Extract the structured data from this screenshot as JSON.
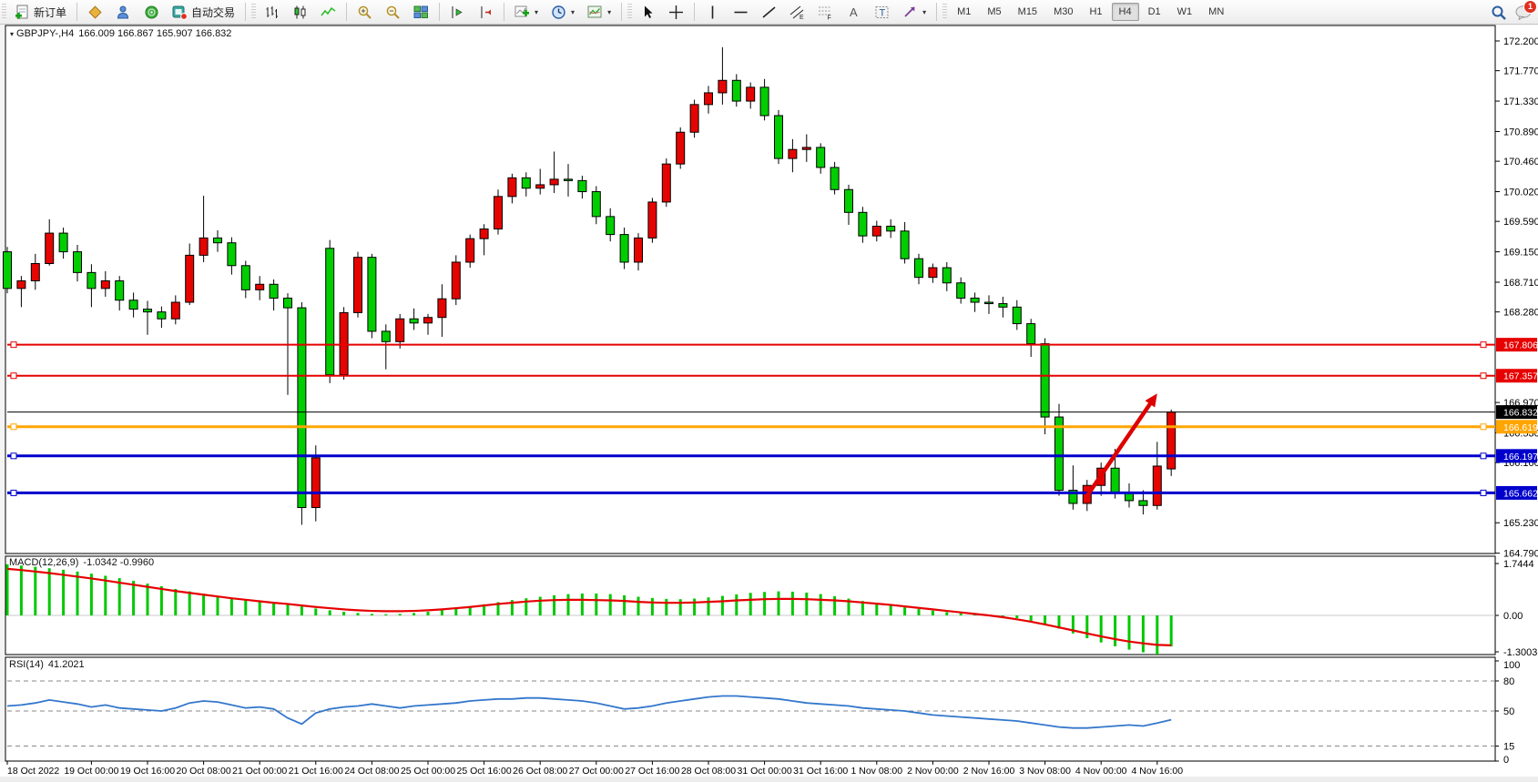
{
  "toolbar": {
    "new_order_label": "新订单",
    "autotrade_label": "自动交易",
    "timeframes": [
      "M1",
      "M5",
      "M15",
      "M30",
      "H1",
      "H4",
      "D1",
      "W1",
      "MN"
    ],
    "active_timeframe": "H4",
    "notification_count": "1"
  },
  "chart": {
    "symbol_period": "GBPJPY-,H4",
    "ohlc_text": "166.009 166.867 165.907 166.832",
    "collapse_glyph": "▾"
  },
  "macd": {
    "name": "MACD(12,26,9)",
    "values": "-1.0342 -0.9960"
  },
  "rsi": {
    "name": "RSI(14)",
    "value": "41.2021"
  },
  "chart_data": {
    "type": "candlestick",
    "symbol": "GBPJPY-",
    "timeframe": "H4",
    "current_ohlc": {
      "open": 166.009,
      "high": 166.867,
      "low": 165.907,
      "close": 166.832
    },
    "colors": {
      "bull": "#e60400",
      "bear": "#00ce00",
      "wick": "#000000",
      "macd_histogram": "#00c800",
      "macd_signal": "#e60000",
      "rsi_line": "#3377cc",
      "level_red": "#e60000",
      "level_orange": "#ffa500",
      "level_blue": "#0000cc",
      "price_line_black": "#000000"
    },
    "price_axis_ticks": [
      "172.200",
      "171.770",
      "171.330",
      "170.890",
      "170.460",
      "170.020",
      "169.590",
      "169.150",
      "168.710",
      "168.280",
      "166.970",
      "166.530",
      "166.100",
      "165.230",
      "164.790"
    ],
    "time_axis_labels": [
      "18 Oct 2022",
      "19 Oct 00:00",
      "19 Oct 16:00",
      "20 Oct 08:00",
      "21 Oct 00:00",
      "21 Oct 16:00",
      "24 Oct 08:00",
      "25 Oct 00:00",
      "25 Oct 16:00",
      "26 Oct 08:00",
      "27 Oct 00:00",
      "27 Oct 16:00",
      "28 Oct 08:00",
      "31 Oct 00:00",
      "31 Oct 16:00",
      "1 Nov 08:00",
      "2 Nov 00:00",
      "2 Nov 16:00",
      "3 Nov 08:00",
      "4 Nov 00:00",
      "4 Nov 16:00"
    ],
    "horizontal_lines": [
      {
        "price": 167.806,
        "label": "167.806",
        "color": "#e60000",
        "width": 2,
        "handles": true
      },
      {
        "price": 167.357,
        "label": "167.357",
        "color": "#e60000",
        "width": 2,
        "handles": true
      },
      {
        "price": 166.832,
        "label": "166.832",
        "color": "#000000",
        "width": 1,
        "handles": false
      },
      {
        "price": 166.619,
        "label": "166.619",
        "color": "#ffa500",
        "width": 3,
        "handles": true
      },
      {
        "price": 166.197,
        "label": "166.197",
        "color": "#0000cc",
        "width": 3,
        "handles": true
      },
      {
        "price": 165.662,
        "label": "165.662",
        "color": "#0000cc",
        "width": 3,
        "handles": true
      }
    ],
    "candles": [
      [
        169.15,
        169.22,
        168.55,
        168.62
      ],
      [
        168.62,
        168.8,
        168.35,
        168.73
      ],
      [
        168.73,
        169.12,
        168.6,
        168.98
      ],
      [
        168.98,
        169.62,
        168.95,
        169.42
      ],
      [
        169.42,
        169.5,
        169.05,
        169.15
      ],
      [
        169.15,
        169.25,
        168.72,
        168.85
      ],
      [
        168.85,
        168.97,
        168.35,
        168.62
      ],
      [
        168.62,
        168.87,
        168.5,
        168.73
      ],
      [
        168.73,
        168.8,
        168.3,
        168.45
      ],
      [
        168.45,
        168.56,
        168.2,
        168.32
      ],
      [
        168.32,
        168.44,
        167.95,
        168.28
      ],
      [
        168.28,
        168.36,
        168.05,
        168.18
      ],
      [
        168.18,
        168.52,
        168.1,
        168.42
      ],
      [
        168.42,
        169.27,
        168.38,
        169.1
      ],
      [
        169.1,
        169.96,
        169.0,
        169.35
      ],
      [
        169.35,
        169.46,
        169.15,
        169.28
      ],
      [
        169.28,
        169.36,
        168.82,
        168.95
      ],
      [
        168.95,
        169.02,
        168.48,
        168.6
      ],
      [
        168.6,
        168.8,
        168.45,
        168.68
      ],
      [
        168.68,
        168.75,
        168.3,
        168.48
      ],
      [
        168.48,
        168.55,
        167.08,
        168.34
      ],
      [
        168.34,
        168.42,
        165.2,
        165.45
      ],
      [
        165.45,
        166.35,
        165.25,
        166.17
      ],
      [
        169.2,
        169.32,
        167.25,
        167.37
      ],
      [
        167.37,
        168.35,
        167.3,
        168.27
      ],
      [
        168.27,
        169.15,
        168.2,
        169.07
      ],
      [
        169.07,
        169.12,
        167.9,
        168.0
      ],
      [
        168.0,
        168.1,
        167.45,
        167.85
      ],
      [
        167.85,
        168.25,
        167.75,
        168.18
      ],
      [
        168.18,
        168.33,
        168.02,
        168.12
      ],
      [
        168.12,
        168.25,
        167.95,
        168.2
      ],
      [
        168.2,
        168.68,
        167.92,
        168.47
      ],
      [
        168.47,
        169.1,
        168.38,
        169.0
      ],
      [
        169.0,
        169.4,
        168.92,
        169.34
      ],
      [
        169.34,
        169.55,
        169.1,
        169.48
      ],
      [
        169.48,
        170.05,
        169.4,
        169.95
      ],
      [
        169.95,
        170.28,
        169.85,
        170.22
      ],
      [
        170.22,
        170.3,
        169.95,
        170.07
      ],
      [
        170.07,
        170.35,
        169.98,
        170.12
      ],
      [
        170.12,
        170.6,
        170.0,
        170.2
      ],
      [
        170.2,
        170.42,
        169.95,
        170.18
      ],
      [
        170.18,
        170.25,
        169.92,
        170.02
      ],
      [
        170.02,
        170.1,
        169.55,
        169.66
      ],
      [
        169.66,
        169.78,
        169.3,
        169.4
      ],
      [
        169.4,
        169.5,
        168.9,
        169.0
      ],
      [
        169.0,
        169.42,
        168.88,
        169.35
      ],
      [
        169.35,
        169.93,
        169.28,
        169.87
      ],
      [
        169.87,
        170.5,
        169.8,
        170.42
      ],
      [
        170.42,
        170.95,
        170.35,
        170.88
      ],
      [
        170.88,
        171.35,
        170.8,
        171.28
      ],
      [
        171.28,
        171.55,
        171.15,
        171.45
      ],
      [
        171.45,
        172.11,
        171.28,
        171.63
      ],
      [
        171.63,
        171.72,
        171.25,
        171.33
      ],
      [
        171.33,
        171.6,
        171.22,
        171.53
      ],
      [
        171.53,
        171.65,
        171.05,
        171.12
      ],
      [
        171.12,
        171.2,
        170.42,
        170.5
      ],
      [
        170.5,
        170.78,
        170.3,
        170.63
      ],
      [
        170.63,
        170.85,
        170.45,
        170.66
      ],
      [
        170.66,
        170.72,
        170.28,
        170.37
      ],
      [
        170.37,
        170.45,
        169.98,
        170.05
      ],
      [
        170.05,
        170.12,
        169.54,
        169.72
      ],
      [
        169.72,
        169.8,
        169.28,
        169.38
      ],
      [
        169.38,
        169.6,
        169.3,
        169.52
      ],
      [
        169.52,
        169.62,
        169.35,
        169.45
      ],
      [
        169.45,
        169.58,
        168.98,
        169.05
      ],
      [
        169.05,
        169.12,
        168.68,
        168.78
      ],
      [
        168.78,
        168.98,
        168.7,
        168.92
      ],
      [
        168.92,
        169.0,
        168.58,
        168.7
      ],
      [
        168.7,
        168.78,
        168.4,
        168.48
      ],
      [
        168.48,
        168.56,
        168.28,
        168.42
      ],
      [
        168.42,
        168.52,
        168.25,
        168.4
      ],
      [
        168.4,
        168.5,
        168.2,
        168.35
      ],
      [
        168.35,
        168.45,
        168.02,
        168.11
      ],
      [
        168.11,
        168.18,
        167.63,
        167.82
      ],
      [
        167.82,
        167.9,
        166.51,
        166.76
      ],
      [
        166.76,
        166.95,
        165.62,
        165.7
      ],
      [
        165.7,
        166.06,
        165.42,
        165.51
      ],
      [
        165.51,
        165.85,
        165.4,
        165.77
      ],
      [
        165.77,
        166.1,
        165.62,
        166.02
      ],
      [
        166.02,
        166.3,
        165.58,
        165.66
      ],
      [
        165.66,
        165.8,
        165.45,
        165.55
      ],
      [
        165.55,
        165.7,
        165.35,
        165.48
      ],
      [
        165.48,
        166.4,
        165.42,
        166.05
      ],
      [
        166.009,
        166.867,
        165.907,
        166.832
      ]
    ],
    "macd": {
      "label": "MACD(12,26,9)",
      "values_text": "-1.0342 -0.9960",
      "axis_labels": [
        "1.7444",
        "0.00",
        "-1.3003"
      ],
      "histogram": [
        1.7,
        1.66,
        1.62,
        1.57,
        1.52,
        1.46,
        1.39,
        1.32,
        1.24,
        1.15,
        1.06,
        0.97,
        0.88,
        0.8,
        0.72,
        0.65,
        0.58,
        0.52,
        0.47,
        0.42,
        0.37,
        0.3,
        0.23,
        0.17,
        0.12,
        0.08,
        0.05,
        0.04,
        0.05,
        0.08,
        0.12,
        0.17,
        0.23,
        0.3,
        0.37,
        0.44,
        0.51,
        0.57,
        0.62,
        0.67,
        0.71,
        0.73,
        0.73,
        0.71,
        0.67,
        0.62,
        0.58,
        0.55,
        0.54,
        0.56,
        0.6,
        0.65,
        0.7,
        0.75,
        0.78,
        0.8,
        0.79,
        0.76,
        0.71,
        0.64,
        0.56,
        0.48,
        0.4,
        0.33,
        0.27,
        0.21,
        0.16,
        0.11,
        0.07,
        0.04,
        0.01,
        -0.03,
        -0.09,
        -0.18,
        -0.3,
        -0.44,
        -0.6,
        -0.76,
        -0.9,
        -1.03,
        -1.14,
        -1.23,
        -1.3003,
        -1.0342
      ],
      "signal": [
        1.55,
        1.51,
        1.46,
        1.41,
        1.35,
        1.29,
        1.23,
        1.16,
        1.09,
        1.02,
        0.95,
        0.88,
        0.81,
        0.75,
        0.69,
        0.63,
        0.57,
        0.52,
        0.47,
        0.42,
        0.38,
        0.33,
        0.28,
        0.24,
        0.2,
        0.17,
        0.15,
        0.14,
        0.14,
        0.15,
        0.17,
        0.2,
        0.24,
        0.28,
        0.33,
        0.38,
        0.42,
        0.46,
        0.49,
        0.51,
        0.52,
        0.52,
        0.51,
        0.5,
        0.48,
        0.45,
        0.43,
        0.42,
        0.42,
        0.43,
        0.45,
        0.47,
        0.5,
        0.52,
        0.54,
        0.55,
        0.55,
        0.54,
        0.52,
        0.5,
        0.47,
        0.43,
        0.39,
        0.35,
        0.3,
        0.25,
        0.2,
        0.15,
        0.1,
        0.05,
        0.0,
        -0.06,
        -0.13,
        -0.21,
        -0.3,
        -0.4,
        -0.5,
        -0.6,
        -0.7,
        -0.79,
        -0.87,
        -0.93,
        -0.98,
        -0.996
      ]
    },
    "rsi": {
      "label": "RSI(14)",
      "value_text": "41.2021",
      "levels_labels": [
        "100",
        "80",
        "50",
        "15",
        "0"
      ],
      "dashed_levels": [
        80,
        50,
        15
      ],
      "series": [
        55,
        56,
        58,
        61,
        59,
        57,
        54,
        56,
        53,
        52,
        51,
        50,
        53,
        58,
        60,
        59,
        56,
        53,
        54,
        52,
        43,
        37,
        48,
        52,
        54,
        55,
        57,
        55,
        53,
        55,
        56,
        57,
        58,
        60,
        61,
        62,
        62,
        63,
        63,
        62,
        61,
        60,
        58,
        55,
        52,
        53,
        55,
        58,
        60,
        62,
        64,
        65,
        65,
        64,
        63,
        62,
        60,
        58,
        57,
        56,
        55,
        53,
        52,
        51,
        50,
        48,
        46,
        45,
        44,
        43,
        42,
        41,
        40,
        38,
        36,
        34,
        33,
        33,
        34,
        35,
        36,
        35,
        38,
        41.2
      ],
      "ylim": [
        0,
        100
      ]
    },
    "annotations": [
      {
        "type": "arrow",
        "from_bar": 77,
        "from_price": 165.62,
        "to_bar": 82,
        "to_price": 167.1,
        "color": "#dd0000"
      }
    ]
  }
}
